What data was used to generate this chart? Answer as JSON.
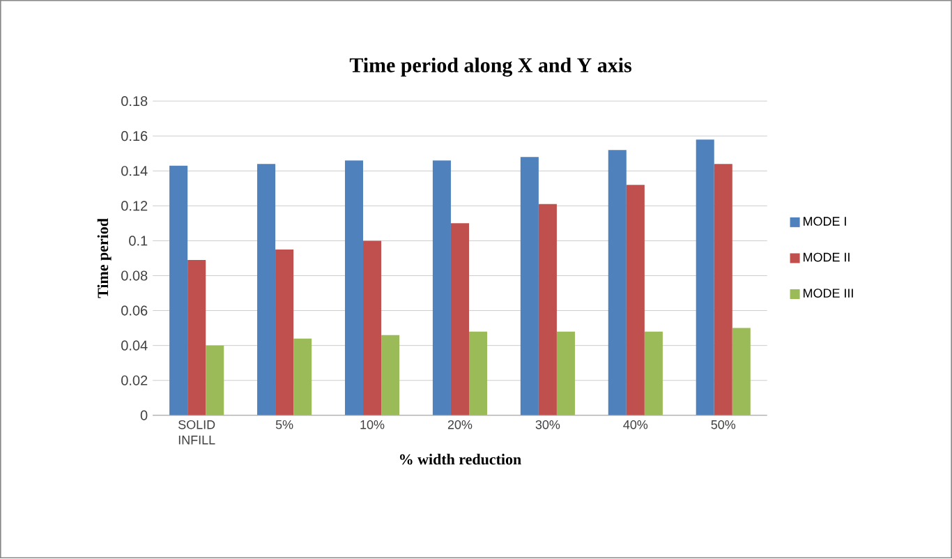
{
  "chart_data": {
    "type": "bar",
    "title": "Time period along X and Y axis",
    "xlabel": "% width reduction",
    "ylabel": "Time period",
    "categories": [
      "SOLID INFILL",
      "5%",
      "10%",
      "20%",
      "30%",
      "40%",
      "50%"
    ],
    "series": [
      {
        "name": "MODE I",
        "color": "#4f81bd",
        "values": [
          0.143,
          0.144,
          0.146,
          0.146,
          0.148,
          0.152,
          0.158
        ]
      },
      {
        "name": "MODE II",
        "color": "#c0504d",
        "values": [
          0.089,
          0.095,
          0.1,
          0.11,
          0.121,
          0.132,
          0.144
        ]
      },
      {
        "name": "MODE III",
        "color": "#9bbb59",
        "values": [
          0.04,
          0.044,
          0.046,
          0.048,
          0.048,
          0.048,
          0.05
        ]
      }
    ],
    "ylim": [
      0,
      0.18
    ],
    "yticks": [
      0,
      0.02,
      0.04,
      0.06,
      0.08,
      0.1,
      0.12,
      0.14,
      0.16,
      0.18
    ],
    "grid": "y",
    "legend": "right"
  }
}
